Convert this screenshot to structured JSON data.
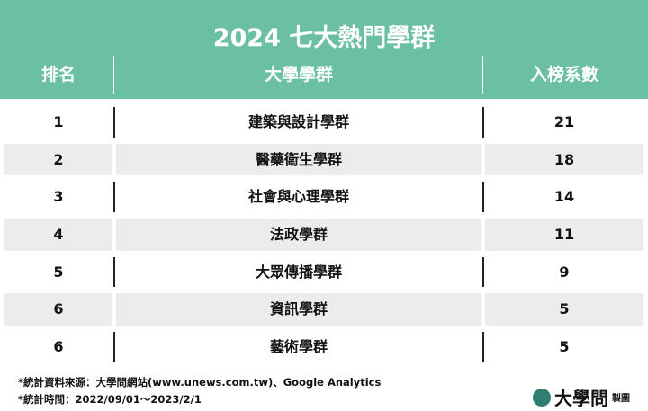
{
  "title": "2024 七大熱門學群",
  "columns": [
    "排名",
    "大學學群",
    "入榜系數"
  ],
  "rows": [
    {
      "rank": "1",
      "group": "建築與設計學群",
      "count": "21"
    },
    {
      "rank": "2",
      "group": "醫藥衛生學群",
      "count": "18"
    },
    {
      "rank": "3",
      "group": "社會與心理學群",
      "count": "14"
    },
    {
      "rank": "4",
      "group": "法政學群",
      "count": "11"
    },
    {
      "rank": "5",
      "group": "大眾傳播學群",
      "count": "9"
    },
    {
      "rank": "6",
      "group": "資訊學群",
      "count": "5"
    },
    {
      "rank": "6",
      "group": "藝術學群",
      "count": "5"
    }
  ],
  "footer": {
    "source": "*統計資料來源：大學問網站(www.unews.com.tw)、Google Analytics",
    "period": "*統計時間：2022/09/01～2023/2/1"
  },
  "logo": {
    "name": "大學問",
    "made": "製圖"
  },
  "colors": {
    "header": "#6bbfa5",
    "alt_row": "#ececec"
  }
}
